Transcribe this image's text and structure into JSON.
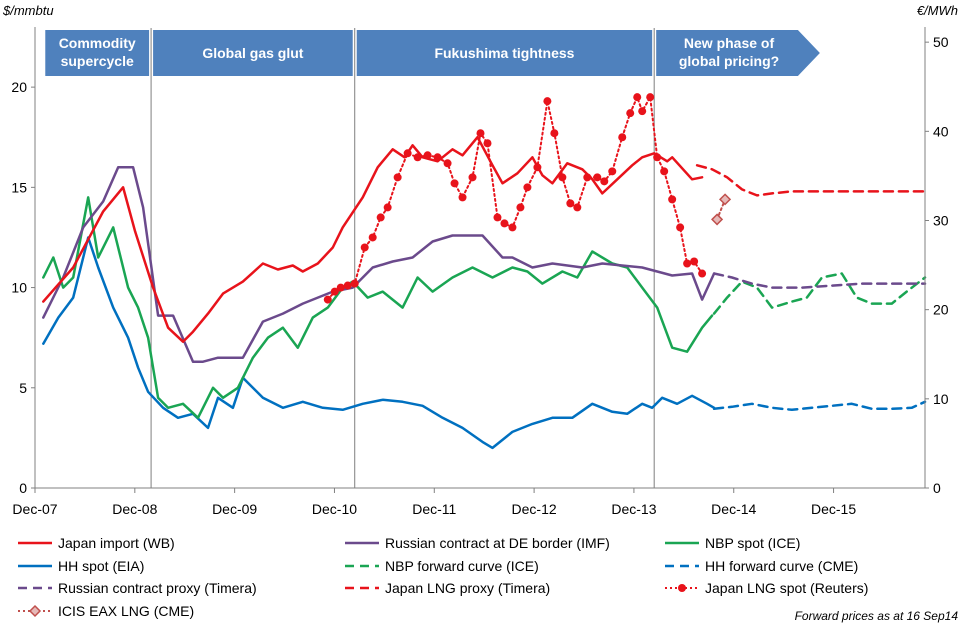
{
  "chart_data": {
    "type": "line",
    "left_axis_unit": "$/mmbtu",
    "right_axis_unit": "€/MWh",
    "ylim_left": [
      0,
      23
    ],
    "ylim_right": [
      0,
      51.7
    ],
    "yticks_left": [
      "0",
      "5",
      "10",
      "15",
      "20"
    ],
    "yticks_right": [
      "0",
      "10",
      "20",
      "30",
      "40",
      "50"
    ],
    "xlim": [
      2007.917,
      2016.833
    ],
    "xticks": [
      {
        "x": 2007.917,
        "label": "Dec-07"
      },
      {
        "x": 2008.917,
        "label": "Dec-08"
      },
      {
        "x": 2009.917,
        "label": "Dec-09"
      },
      {
        "x": 2010.917,
        "label": "Dec-10"
      },
      {
        "x": 2011.917,
        "label": "Dec-11"
      },
      {
        "x": 2012.917,
        "label": "Dec-12"
      },
      {
        "x": 2013.917,
        "label": "Dec-13"
      },
      {
        "x": 2014.917,
        "label": "Dec-14"
      },
      {
        "x": 2015.917,
        "label": "Dec-15"
      }
    ],
    "phases": [
      {
        "label": [
          "Commodity",
          "supercycle"
        ],
        "start": 2008.0,
        "end": 2009.08
      },
      {
        "label": [
          "Global gas glut"
        ],
        "start": 2009.08,
        "end": 2011.12
      },
      {
        "label": [
          "Fukushima tightness"
        ],
        "start": 2011.12,
        "end": 2014.12
      },
      {
        "label": [
          "New phase of",
          "global pricing?"
        ],
        "start": 2014.12,
        "end": 2015.8
      }
    ],
    "phase_dividers": [
      2009.08,
      2011.12,
      2014.12
    ],
    "series": [
      {
        "name": "Japan import (WB)",
        "color": "#e8131b",
        "style": "solid",
        "x": [
          2008.0,
          2008.3,
          2008.6,
          2008.8,
          2008.92,
          2009.1,
          2009.25,
          2009.4,
          2009.5,
          2009.65,
          2009.8,
          2010.0,
          2010.2,
          2010.35,
          2010.5,
          2010.6,
          2010.75,
          2010.9,
          2011.0,
          2011.2,
          2011.35,
          2011.5,
          2011.62,
          2011.7,
          2011.8,
          2011.95,
          2012.1,
          2012.2,
          2012.35,
          2012.5,
          2012.6,
          2012.75,
          2012.9,
          2013.0,
          2013.1,
          2013.25,
          2013.4,
          2013.5,
          2013.6,
          2013.75,
          2013.9,
          2014.0,
          2014.12,
          2014.25,
          2014.3,
          2014.5,
          2014.6
        ],
        "y": [
          9.3,
          11.0,
          13.8,
          15.0,
          12.8,
          10.0,
          8.0,
          7.3,
          7.8,
          8.7,
          9.7,
          10.3,
          11.2,
          10.9,
          11.1,
          10.8,
          11.2,
          12.0,
          13.0,
          14.5,
          16.0,
          16.9,
          16.5,
          17.1,
          16.5,
          16.3,
          16.9,
          16.6,
          17.5,
          16.1,
          15.2,
          15.7,
          16.5,
          15.6,
          15.2,
          16.2,
          15.9,
          15.4,
          14.7,
          15.4,
          16.1,
          16.5,
          16.7,
          16.3,
          16.5,
          15.4,
          15.5
        ]
      },
      {
        "name": "Russian contract at DE border (IMF)",
        "color": "#6b4a8c",
        "style": "solid",
        "x": [
          2008.0,
          2008.2,
          2008.4,
          2008.6,
          2008.75,
          2008.9,
          2009.0,
          2009.15,
          2009.3,
          2009.5,
          2009.6,
          2009.75,
          2010.0,
          2010.2,
          2010.4,
          2010.6,
          2010.9,
          2011.1,
          2011.3,
          2011.5,
          2011.7,
          2011.9,
          2012.1,
          2012.4,
          2012.6,
          2012.7,
          2012.9,
          2013.1,
          2013.4,
          2013.6,
          2013.8,
          2014.0,
          2014.3,
          2014.5,
          2014.6,
          2014.72
        ],
        "y": [
          8.5,
          10.5,
          13.0,
          14.3,
          16.0,
          16.0,
          14.0,
          8.6,
          8.6,
          6.3,
          6.3,
          6.5,
          6.5,
          8.3,
          8.7,
          9.2,
          9.8,
          10.0,
          11.0,
          11.3,
          11.5,
          12.3,
          12.6,
          12.6,
          11.5,
          11.5,
          11.0,
          11.2,
          11.0,
          11.2,
          11.1,
          11.0,
          10.6,
          10.7,
          9.4,
          10.7
        ]
      },
      {
        "name": "NBP spot (ICE)",
        "color": "#1aa553",
        "style": "solid",
        "x": [
          2008.0,
          2008.1,
          2008.2,
          2008.3,
          2008.45,
          2008.55,
          2008.7,
          2008.85,
          2008.95,
          2009.05,
          2009.15,
          2009.25,
          2009.4,
          2009.55,
          2009.7,
          2009.8,
          2009.95,
          2010.1,
          2010.25,
          2010.4,
          2010.55,
          2010.7,
          2010.85,
          2011.0,
          2011.1,
          2011.25,
          2011.4,
          2011.6,
          2011.75,
          2011.9,
          2012.1,
          2012.3,
          2012.5,
          2012.7,
          2012.85,
          2013.0,
          2013.2,
          2013.35,
          2013.5,
          2013.7,
          2013.85,
          2014.0,
          2014.15,
          2014.3,
          2014.45,
          2014.6,
          2014.7
        ],
        "y": [
          10.5,
          11.5,
          10.0,
          10.5,
          14.5,
          11.5,
          13.0,
          10.0,
          9.0,
          7.5,
          4.5,
          4.0,
          4.2,
          3.5,
          5.0,
          4.5,
          5.0,
          6.5,
          7.5,
          8.0,
          7.0,
          8.5,
          9.0,
          10.0,
          10.3,
          9.5,
          9.8,
          9.0,
          10.5,
          9.8,
          10.5,
          11.0,
          10.5,
          11.0,
          10.8,
          10.2,
          10.8,
          10.5,
          11.8,
          11.2,
          11.0,
          10.0,
          9.0,
          7.0,
          6.8,
          8.0,
          8.6
        ]
      },
      {
        "name": "HH spot (EIA)",
        "color": "#0070c0",
        "style": "solid",
        "x": [
          2008.0,
          2008.15,
          2008.3,
          2008.45,
          2008.55,
          2008.7,
          2008.85,
          2008.95,
          2009.05,
          2009.2,
          2009.35,
          2009.5,
          2009.65,
          2009.75,
          2009.9,
          2010.0,
          2010.2,
          2010.4,
          2010.6,
          2010.8,
          2011.0,
          2011.2,
          2011.4,
          2011.6,
          2011.8,
          2012.0,
          2012.2,
          2012.4,
          2012.5,
          2012.7,
          2012.9,
          2013.1,
          2013.3,
          2013.5,
          2013.7,
          2013.85,
          2014.0,
          2014.1,
          2014.2,
          2014.35,
          2014.5,
          2014.65,
          2014.72
        ],
        "y": [
          7.2,
          8.5,
          9.5,
          12.5,
          11.0,
          9.0,
          7.5,
          6.0,
          4.8,
          4.0,
          3.5,
          3.7,
          3.0,
          4.5,
          4.0,
          5.5,
          4.5,
          4.0,
          4.3,
          4.0,
          3.9,
          4.2,
          4.4,
          4.3,
          4.1,
          3.5,
          3.0,
          2.3,
          2.0,
          2.8,
          3.2,
          3.5,
          3.5,
          4.2,
          3.8,
          3.7,
          4.2,
          4.0,
          4.5,
          4.2,
          4.6,
          4.2,
          4.0
        ]
      },
      {
        "name": "NBP forward curve (ICE)",
        "color": "#1aa553",
        "style": "dashed",
        "x": [
          2014.72,
          2014.85,
          2015.0,
          2015.15,
          2015.3,
          2015.5,
          2015.65,
          2015.8,
          2016.0,
          2016.15,
          2016.3,
          2016.5,
          2016.65,
          2016.833
        ],
        "y": [
          8.7,
          9.5,
          10.3,
          10.0,
          9.0,
          9.3,
          9.5,
          10.5,
          10.7,
          9.5,
          9.2,
          9.2,
          9.8,
          10.5
        ]
      },
      {
        "name": "HH forward curve (CME)",
        "color": "#0070c0",
        "style": "dashed",
        "x": [
          2014.72,
          2014.9,
          2015.1,
          2015.3,
          2015.5,
          2015.7,
          2015.9,
          2016.1,
          2016.3,
          2016.5,
          2016.7,
          2016.833
        ],
        "y": [
          3.95,
          4.05,
          4.2,
          4.0,
          3.9,
          4.0,
          4.1,
          4.2,
          3.95,
          3.95,
          4.0,
          4.3
        ]
      },
      {
        "name": "Russian contract proxy (Timera)",
        "color": "#6b4a8c",
        "style": "dashed",
        "x": [
          2014.72,
          2014.9,
          2015.1,
          2015.3,
          2015.6,
          2015.9,
          2016.2,
          2016.5,
          2016.833
        ],
        "y": [
          10.7,
          10.5,
          10.2,
          10.0,
          10.0,
          10.1,
          10.2,
          10.2,
          10.2
        ]
      },
      {
        "name": "Japan LNG proxy (Timera)",
        "color": "#e8131b",
        "style": "dashed",
        "x": [
          2014.55,
          2014.7,
          2014.85,
          2015.0,
          2015.15,
          2015.3,
          2015.5,
          2015.7,
          2015.9,
          2016.1,
          2016.3,
          2016.5,
          2016.7,
          2016.833
        ],
        "y": [
          16.1,
          15.9,
          15.5,
          14.9,
          14.6,
          14.7,
          14.8,
          14.8,
          14.8,
          14.8,
          14.8,
          14.8,
          14.8,
          14.8
        ]
      },
      {
        "name": "Japan LNG spot (Reuters)",
        "color": "#e8131b",
        "style": "dotted-markers",
        "x": [
          2010.85,
          2010.92,
          2010.98,
          2011.05,
          2011.12,
          2011.22,
          2011.3,
          2011.38,
          2011.45,
          2011.55,
          2011.65,
          2011.75,
          2011.85,
          2011.95,
          2012.05,
          2012.12,
          2012.2,
          2012.3,
          2012.38,
          2012.45,
          2012.55,
          2012.62,
          2012.7,
          2012.78,
          2012.85,
          2012.95,
          2013.05,
          2013.12,
          2013.2,
          2013.28,
          2013.35,
          2013.45,
          2013.55,
          2013.62,
          2013.7,
          2013.8,
          2013.88,
          2013.95,
          2014.0,
          2014.08,
          2014.15,
          2014.22,
          2014.3,
          2014.38,
          2014.45,
          2014.52,
          2014.6
        ],
        "y": [
          9.4,
          9.8,
          10.0,
          10.1,
          10.2,
          12.0,
          12.5,
          13.5,
          14.0,
          15.5,
          16.7,
          16.5,
          16.6,
          16.5,
          16.2,
          15.2,
          14.5,
          15.5,
          17.7,
          17.2,
          13.5,
          13.2,
          13.0,
          14.0,
          15.0,
          16.0,
          19.3,
          17.7,
          15.5,
          14.2,
          14.0,
          15.5,
          15.5,
          15.3,
          15.8,
          17.5,
          18.7,
          19.5,
          18.8,
          19.5,
          16.5,
          15.8,
          14.4,
          13.0,
          11.2,
          11.3,
          10.7
        ]
      },
      {
        "name": "ICIS EAX LNG (CME)",
        "color": "#c0504d",
        "style": "dotted-diamond",
        "x": [
          2014.75,
          2014.83
        ],
        "y": [
          13.4,
          14.4
        ]
      }
    ],
    "legend": [
      [
        "Japan import (WB)",
        "Russian contract at DE border (IMF)",
        "NBP spot (ICE)"
      ],
      [
        "HH spot (EIA)",
        "NBP forward curve (ICE)",
        "HH forward curve (CME)"
      ],
      [
        "Russian contract proxy (Timera)",
        "Japan LNG proxy (Timera)",
        "Japan LNG spot (Reuters)"
      ],
      [
        "ICIS EAX LNG (CME)"
      ]
    ],
    "footnote": "Forward prices as at 16 Sep14"
  }
}
